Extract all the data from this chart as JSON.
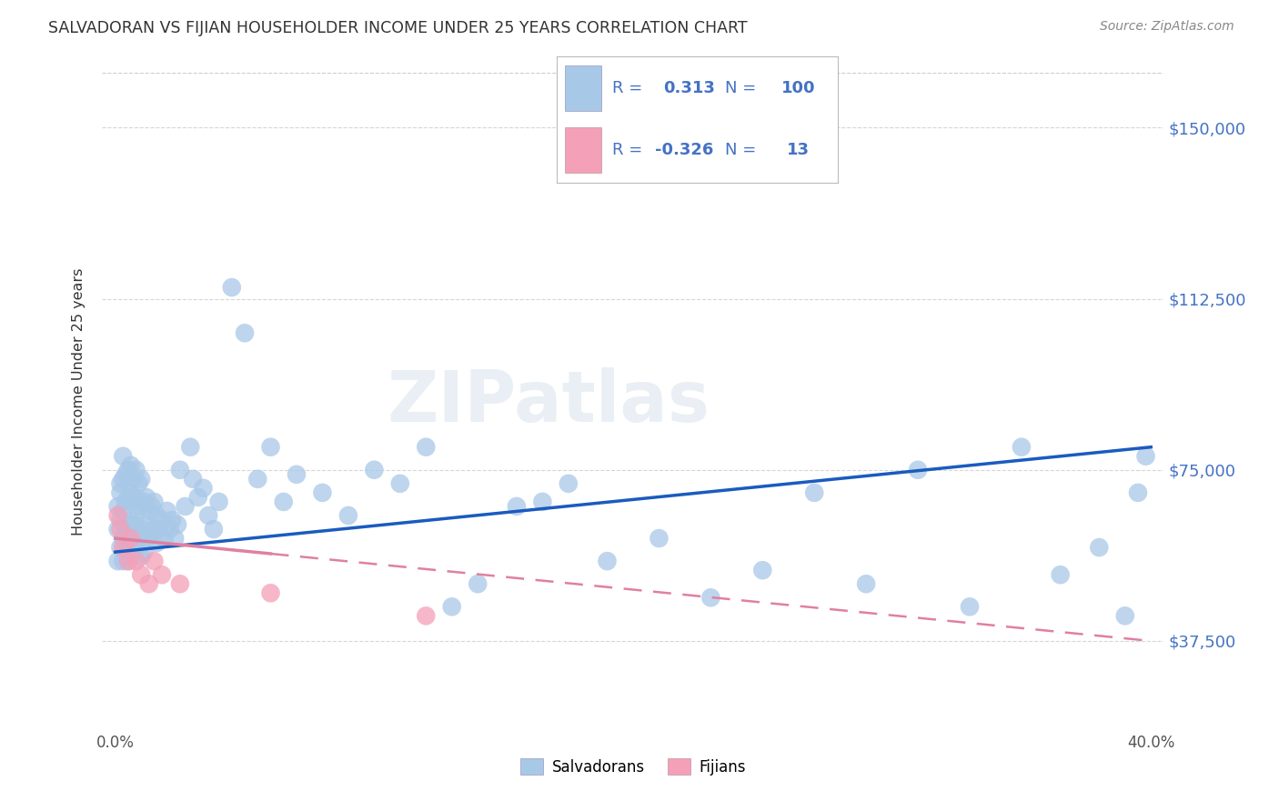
{
  "title": "SALVADORAN VS FIJIAN HOUSEHOLDER INCOME UNDER 25 YEARS CORRELATION CHART",
  "source": "Source: ZipAtlas.com",
  "ylabel": "Householder Income Under 25 years",
  "y_ticks": [
    37500,
    75000,
    112500,
    150000
  ],
  "y_tick_labels": [
    "$37,500",
    "$75,000",
    "$112,500",
    "$150,000"
  ],
  "x_range": [
    0.0,
    0.4
  ],
  "y_range": [
    18000,
    162000
  ],
  "salvadoran_R": "0.313",
  "salvadoran_N": "100",
  "fijian_R": "-0.326",
  "fijian_N": "13",
  "salvadoran_color": "#a8c8e8",
  "fijian_color": "#f4a0b8",
  "salvadoran_line_color": "#1a5bbf",
  "fijian_line_color": "#e080a0",
  "background_color": "#ffffff",
  "watermark": "ZIPatlas",
  "grid_color": "#cccccc",
  "sal_intercept": 57000,
  "sal_slope": 60000,
  "fij_intercept": 60000,
  "fij_slope": -60000,
  "salvadoran_x": [
    0.001,
    0.001,
    0.001,
    0.002,
    0.002,
    0.002,
    0.002,
    0.003,
    0.003,
    0.003,
    0.003,
    0.003,
    0.004,
    0.004,
    0.004,
    0.004,
    0.005,
    0.005,
    0.005,
    0.005,
    0.005,
    0.006,
    0.006,
    0.006,
    0.006,
    0.007,
    0.007,
    0.007,
    0.007,
    0.008,
    0.008,
    0.008,
    0.008,
    0.009,
    0.009,
    0.009,
    0.01,
    0.01,
    0.01,
    0.01,
    0.011,
    0.011,
    0.011,
    0.012,
    0.012,
    0.013,
    0.013,
    0.014,
    0.014,
    0.015,
    0.015,
    0.016,
    0.016,
    0.017,
    0.018,
    0.019,
    0.02,
    0.021,
    0.022,
    0.023,
    0.024,
    0.025,
    0.027,
    0.029,
    0.03,
    0.032,
    0.034,
    0.036,
    0.038,
    0.04,
    0.045,
    0.05,
    0.055,
    0.06,
    0.065,
    0.07,
    0.08,
    0.09,
    0.1,
    0.11,
    0.12,
    0.13,
    0.14,
    0.155,
    0.165,
    0.175,
    0.19,
    0.21,
    0.23,
    0.25,
    0.27,
    0.29,
    0.31,
    0.33,
    0.35,
    0.365,
    0.38,
    0.39,
    0.395,
    0.398
  ],
  "salvadoran_y": [
    62000,
    67000,
    55000,
    70000,
    58000,
    64000,
    72000,
    60000,
    66000,
    73000,
    55000,
    78000,
    62000,
    68000,
    57000,
    74000,
    63000,
    69000,
    58000,
    75000,
    55000,
    64000,
    70000,
    59000,
    76000,
    62000,
    68000,
    57000,
    73000,
    63000,
    69000,
    58000,
    75000,
    60000,
    66000,
    72000,
    61000,
    67000,
    56000,
    73000,
    62000,
    68000,
    57000,
    63000,
    69000,
    60000,
    66000,
    61000,
    67000,
    62000,
    68000,
    59000,
    65000,
    62000,
    64000,
    60000,
    66000,
    62000,
    64000,
    60000,
    63000,
    75000,
    67000,
    80000,
    73000,
    69000,
    71000,
    65000,
    62000,
    68000,
    115000,
    105000,
    73000,
    80000,
    68000,
    74000,
    70000,
    65000,
    75000,
    72000,
    80000,
    45000,
    50000,
    67000,
    68000,
    72000,
    55000,
    60000,
    47000,
    53000,
    70000,
    50000,
    75000,
    45000,
    80000,
    52000,
    58000,
    43000,
    70000,
    78000
  ],
  "fijian_x": [
    0.001,
    0.002,
    0.003,
    0.005,
    0.006,
    0.008,
    0.01,
    0.013,
    0.015,
    0.018,
    0.025,
    0.06,
    0.12
  ],
  "fijian_y": [
    65000,
    62000,
    58000,
    55000,
    60000,
    55000,
    52000,
    50000,
    55000,
    52000,
    50000,
    48000,
    43000
  ]
}
